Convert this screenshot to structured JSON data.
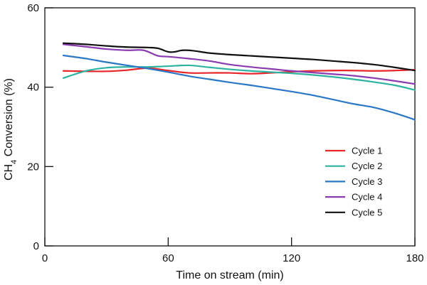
{
  "chart_data": {
    "type": "line",
    "xlabel": "Time on stream (min)",
    "ylabel": {
      "prefix": "CH",
      "subscript": "4",
      "suffix": " Conversion (%)"
    },
    "xlim": [
      0,
      180
    ],
    "ylim": [
      0,
      60
    ],
    "x_ticks": [
      0,
      60,
      120,
      180
    ],
    "y_ticks": [
      0,
      20,
      40,
      60
    ],
    "grid": false,
    "legend_position": "bottom-right",
    "series": [
      {
        "name": "Cycle 1",
        "color": "#e8252a",
        "x": [
          9,
          20,
          30,
          40,
          50,
          60,
          70,
          80,
          90,
          100,
          110,
          120,
          130,
          140,
          150,
          160,
          170,
          180
        ],
        "y": [
          44.1,
          44.0,
          44.0,
          44.3,
          44.8,
          44.2,
          43.6,
          43.6,
          43.6,
          43.4,
          43.6,
          43.9,
          44.1,
          44.2,
          44.2,
          44.1,
          44.2,
          44.4
        ]
      },
      {
        "name": "Cycle 2",
        "color": "#2db3a0",
        "x": [
          9,
          20,
          30,
          40,
          50,
          60,
          70,
          80,
          90,
          100,
          110,
          120,
          130,
          140,
          150,
          160,
          170,
          180
        ],
        "y": [
          42.3,
          44.1,
          44.9,
          45.1,
          45.1,
          45.3,
          45.5,
          45.0,
          44.5,
          44.1,
          43.8,
          43.5,
          43.1,
          42.6,
          42.0,
          41.3,
          40.5,
          39.3
        ]
      },
      {
        "name": "Cycle 3",
        "color": "#2a78c5",
        "x": [
          9,
          20,
          30,
          40,
          50,
          60,
          70,
          80,
          90,
          100,
          110,
          120,
          130,
          140,
          150,
          160,
          170,
          180
        ],
        "y": [
          48.0,
          47.2,
          46.3,
          45.5,
          44.7,
          43.8,
          42.8,
          42.0,
          41.2,
          40.5,
          39.7,
          38.9,
          38.0,
          36.9,
          35.8,
          34.9,
          33.5,
          31.8
        ]
      },
      {
        "name": "Cycle 4",
        "color": "#8a3bb0",
        "x": [
          9,
          20,
          30,
          40,
          48,
          55,
          60,
          70,
          80,
          90,
          100,
          110,
          120,
          130,
          140,
          150,
          160,
          170,
          180
        ],
        "y": [
          50.8,
          50.2,
          49.6,
          49.3,
          49.3,
          47.9,
          47.7,
          47.2,
          46.6,
          45.7,
          45.1,
          44.6,
          44.1,
          43.7,
          43.3,
          42.9,
          42.3,
          41.6,
          40.8
        ]
      },
      {
        "name": "Cycle 5",
        "color": "#111111",
        "x": [
          9,
          20,
          30,
          40,
          50,
          55,
          60,
          63,
          67,
          72,
          80,
          90,
          100,
          110,
          120,
          130,
          140,
          150,
          160,
          170,
          180
        ],
        "y": [
          51.1,
          50.8,
          50.4,
          50.1,
          50.0,
          49.8,
          48.9,
          48.9,
          49.3,
          49.2,
          48.6,
          48.2,
          47.9,
          47.6,
          47.3,
          47.0,
          46.6,
          46.2,
          45.7,
          45.0,
          44.2
        ]
      }
    ]
  }
}
